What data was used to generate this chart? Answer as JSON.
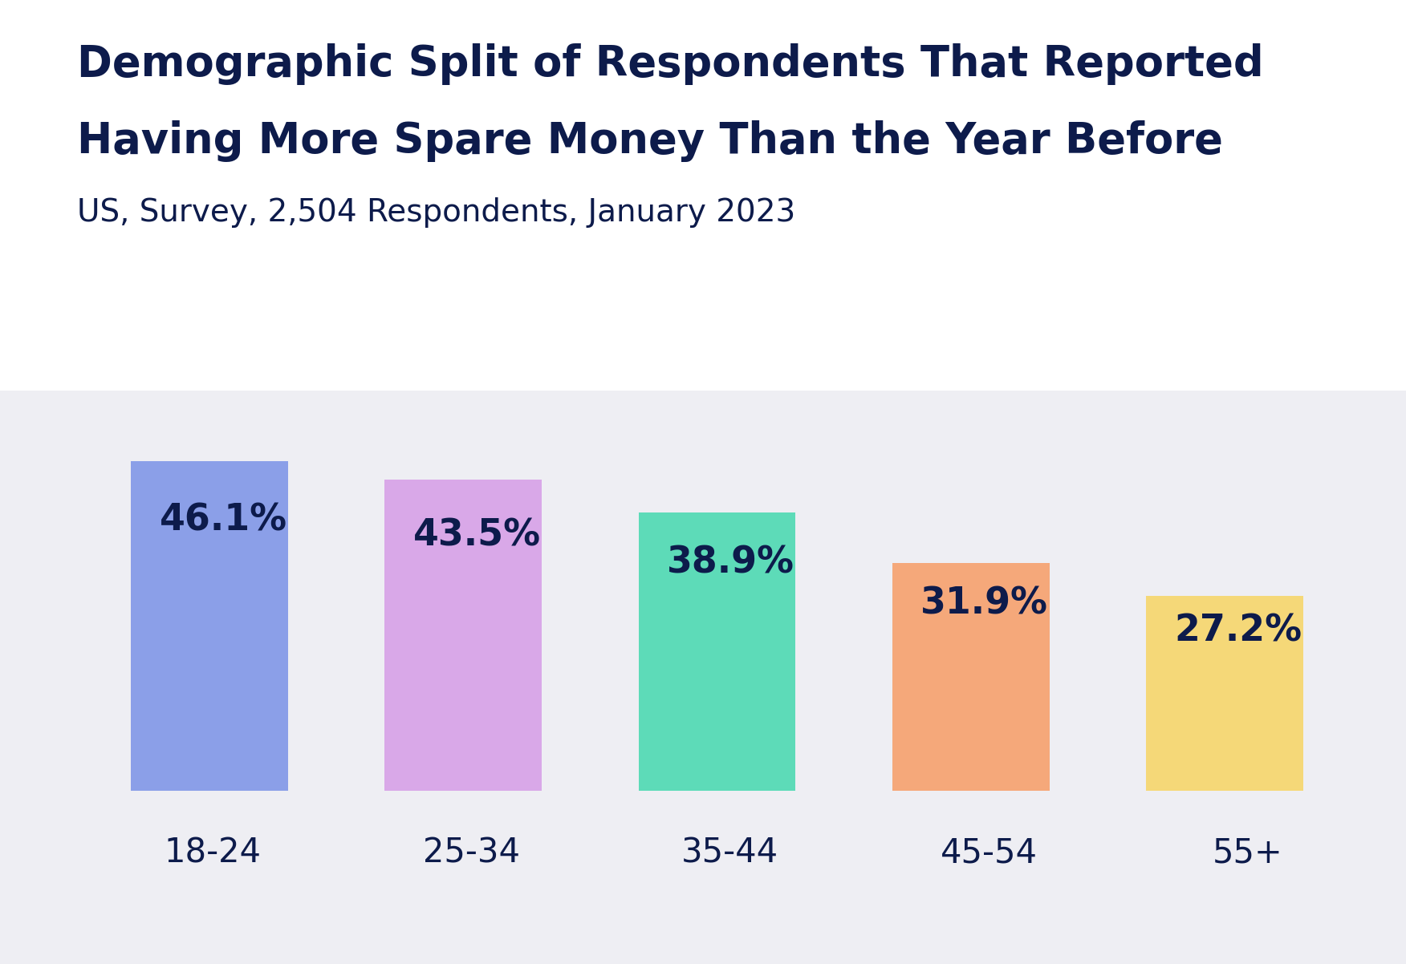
{
  "title_line1": "Demographic Split of Respondents That Reported",
  "title_line2": "Having More Spare Money Than the Year Before",
  "subtitle": "US, Survey, 2,504 Respondents, January 2023",
  "categories": [
    "18-24",
    "25-34",
    "35-44",
    "45-54",
    "55+"
  ],
  "values": [
    46.1,
    43.5,
    38.9,
    31.9,
    27.2
  ],
  "labels": [
    "46.1%",
    "43.5%",
    "38.9%",
    "31.9%",
    "27.2%"
  ],
  "bar_colors": [
    "#8B9FE8",
    "#D9A8E8",
    "#5DDBB8",
    "#F5A87A",
    "#F5D878"
  ],
  "title_color": "#0D1B4B",
  "subtitle_color": "#0D1B4B",
  "label_color": "#0D1B4B",
  "tick_color": "#0D1B4B",
  "background_color": "#FFFFFF",
  "plot_bg_color": "#EEEEF3",
  "title_fontsize": 38,
  "subtitle_fontsize": 28,
  "label_fontsize": 33,
  "tick_fontsize": 30,
  "ylim": [
    0,
    54
  ],
  "bar_width": 0.62
}
